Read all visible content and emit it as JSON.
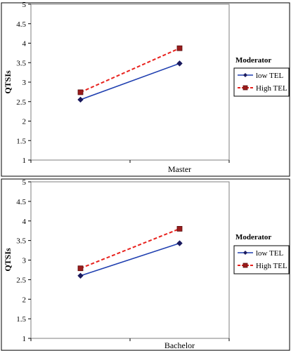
{
  "chart_data": [
    {
      "type": "line",
      "categories": [
        "",
        ""
      ],
      "xlabel": "Master",
      "ylabel": "QTSIs",
      "ylim": [
        1,
        5
      ],
      "yticks": [
        "1",
        "1.5",
        "2",
        "2.5",
        "3",
        "3.5",
        "4",
        "4.5",
        "5"
      ],
      "grid": false,
      "legend": {
        "title": "Moderator",
        "placement": "right"
      },
      "series": [
        {
          "name": "low TEL",
          "values": [
            2.55,
            3.48
          ],
          "color": "#1f3fb0",
          "dash": "solid",
          "marker": "diamond",
          "marker_color": "#1a1a5e"
        },
        {
          "name": "High TEL",
          "values": [
            2.74,
            3.87
          ],
          "color": "#e8211d",
          "dash": "dashed",
          "marker": "square",
          "marker_color": "#9b1c1c"
        }
      ]
    },
    {
      "type": "line",
      "categories": [
        "",
        ""
      ],
      "xlabel": "Bachelor",
      "ylabel": "QTSIs",
      "ylim": [
        1,
        5
      ],
      "yticks": [
        "1",
        "1.5",
        "2",
        "2.5",
        "3",
        "3.5",
        "4",
        "4.5",
        "5"
      ],
      "grid": false,
      "legend": {
        "title": "Moderator",
        "placement": "right"
      },
      "series": [
        {
          "name": "low TEL",
          "values": [
            2.6,
            3.43
          ],
          "color": "#1f3fb0",
          "dash": "solid",
          "marker": "diamond",
          "marker_color": "#1a1a5e"
        },
        {
          "name": "High TEL",
          "values": [
            2.79,
            3.8
          ],
          "color": "#e8211d",
          "dash": "dashed",
          "marker": "square",
          "marker_color": "#9b1c1c"
        }
      ]
    }
  ]
}
